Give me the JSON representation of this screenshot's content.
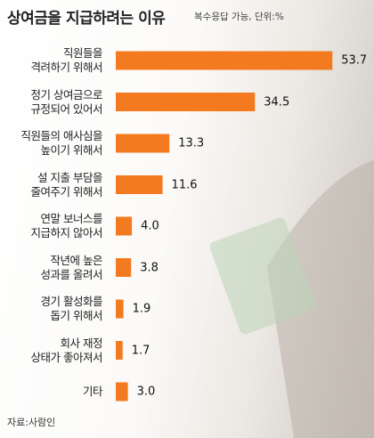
{
  "chart_data": {
    "type": "hbar",
    "title": "상여금을 지급하려는 이유",
    "subtitle": "복수응답 가능, 단위:%",
    "source": "자료:사람인",
    "categories": [
      "직원들을\n격려하기 위해서",
      "정기 상여금으로\n규정되어 있어서",
      "직원들의 애사심을\n높이기 위해서",
      "설 지출 부담을\n줄여주기 위해서",
      "연말 보너스를\n지급하지 않아서",
      "작년에 높은\n성과를 올려서",
      "경기 활성화를\n돕기 위해서",
      "회사 재정\n상태가 좋아져서",
      "기타"
    ],
    "values": [
      53.7,
      34.5,
      13.3,
      11.6,
      4.0,
      3.8,
      1.9,
      1.7,
      3.0
    ],
    "value_labels": [
      "53.7",
      "34.5",
      "13.3",
      "11.6",
      "4.0",
      "3.8",
      "1.9",
      "1.7",
      "3.0"
    ],
    "color": "#f47a1f"
  }
}
